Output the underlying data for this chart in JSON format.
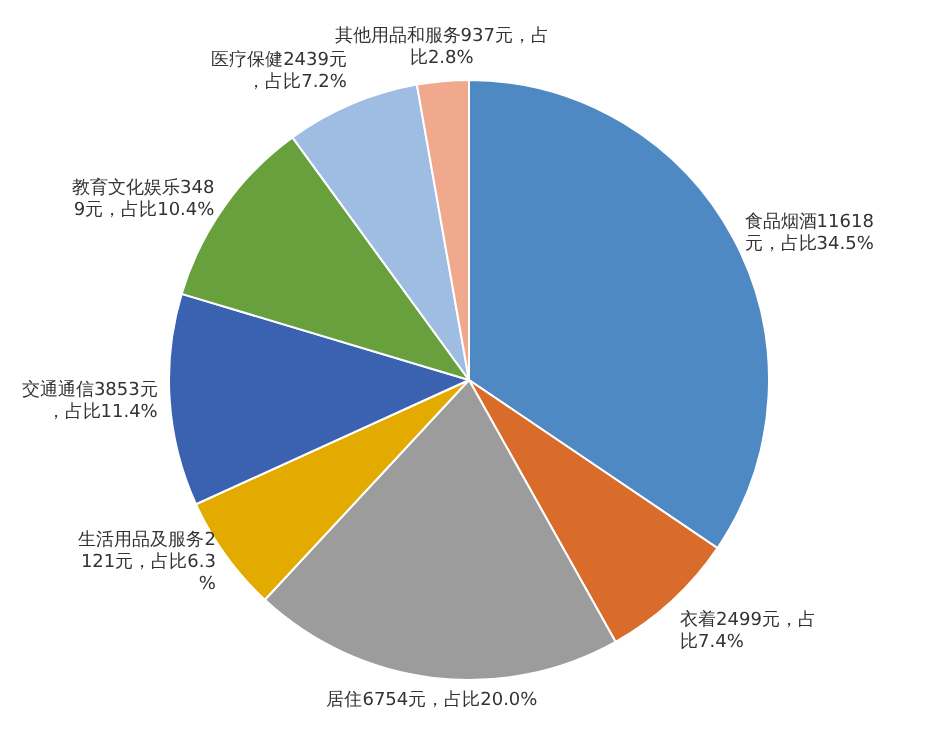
{
  "chart_data": {
    "type": "pie",
    "categories": [
      "食品烟酒",
      "衣着",
      "居住",
      "生活用品及服务",
      "交通通信",
      "教育文化娱乐",
      "医疗保健",
      "其他用品和服务"
    ],
    "values": [
      11618,
      2499,
      6754,
      2121,
      3853,
      3489,
      2439,
      937
    ],
    "value_labels": [
      "11618元，占比34.5%",
      "2499元，占比7.4%",
      "6754元，占比20.0%",
      "2121元，占比6.3%",
      "3853元，占比11.4%",
      "3489元，占比10.4%",
      "2439元，占比7.2%",
      "937元，占比2.8%"
    ],
    "colors": [
      "#4e89c3",
      "#d96c2a",
      "#9c9c9c",
      "#e3aa00",
      "#3b62b0",
      "#67a03d",
      "#9fbde3",
      "#f0a98c"
    ],
    "legend": false
  }
}
